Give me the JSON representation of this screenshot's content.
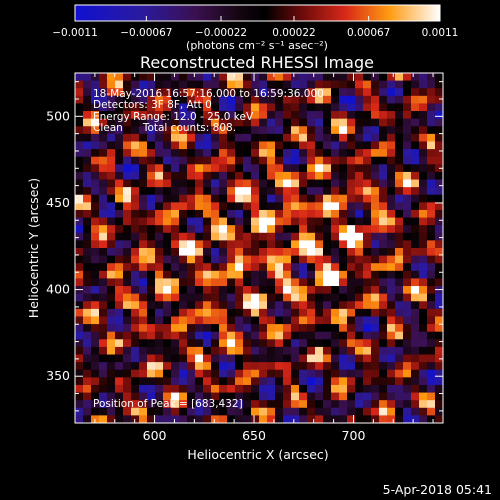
{
  "chart_data": {
    "type": "heatmap",
    "title": "Reconstructed RHESSI Image",
    "xlabel": "Heliocentric X (arcsec)",
    "ylabel": "Heliocentric Y (arcsec)",
    "xlim": [
      560,
      745
    ],
    "ylim": [
      323,
      525
    ],
    "x_ticks": [
      600,
      650,
      700
    ],
    "y_ticks": [
      350,
      400,
      450,
      500
    ],
    "colorbar": {
      "range": [
        -0.0011,
        0.0011
      ],
      "tick_values": [
        -0.0011,
        -0.00067,
        -0.00022,
        0.00022,
        0.00067,
        0.0011
      ],
      "tick_labels": [
        "−0.0011",
        "−0.00067",
        "−0.00022",
        "0.00022",
        "0.00067",
        "0.0011"
      ],
      "units": "(photons cm⁻² s⁻¹ asec⁻²)"
    },
    "annotations": [
      "18-May-2016 16:57:16.000 to 16:59:36.000",
      "Detectors: 3F 8F, Att 0",
      "Energy Range: 12.0 - 25.0 keV",
      "Clean      Total counts: 808."
    ],
    "peak_label": "Position of Peak = [683,432]",
    "peak": [
      683,
      432
    ]
  },
  "timestamp": "5-Apr-2018 05:41",
  "colors": {
    "background": "#000000",
    "text": "#ffffff"
  }
}
